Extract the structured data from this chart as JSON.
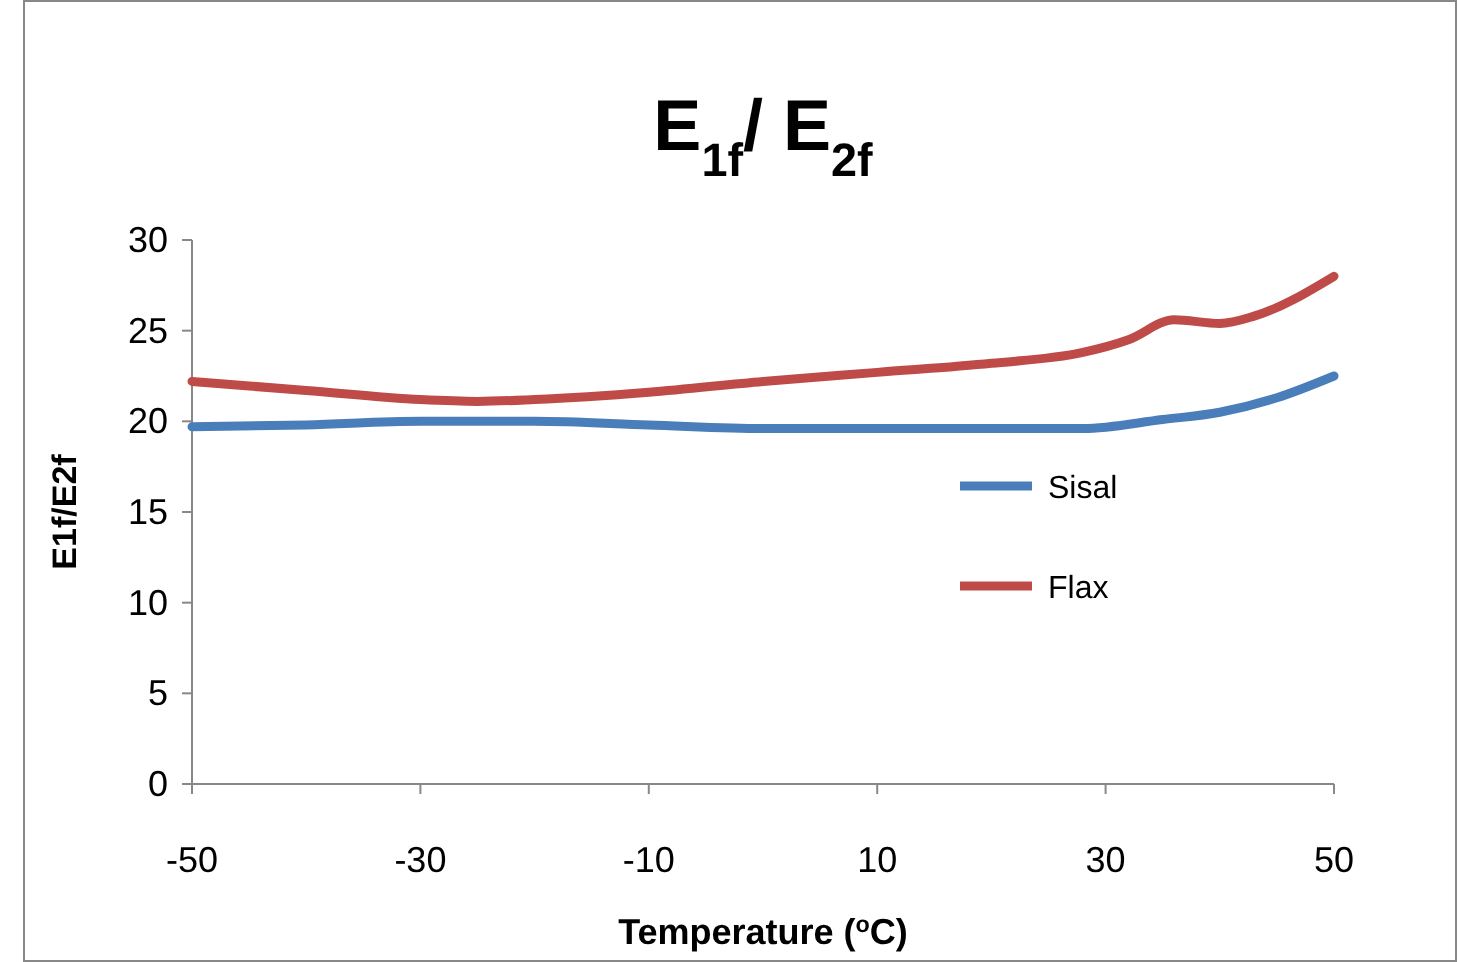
{
  "chart_data": {
    "type": "line",
    "title": "E$_{1f}$/ E$_{2f}$",
    "xlabel": "Temperature ($^{o}$C)",
    "ylabel": "E1f/E2f",
    "xlim": [
      -50,
      50
    ],
    "xticks": [
      -50,
      -30,
      -10,
      10,
      30,
      50
    ],
    "ylim": [
      0,
      30
    ],
    "yticks": [
      0,
      5,
      10,
      15,
      20,
      25,
      30
    ],
    "grid": false,
    "legend": "right",
    "line_style": "solid",
    "series": [
      {
        "name": "Sisal",
        "color": "#4a7ebb",
        "x": [
          -50,
          -40,
          -30,
          -20,
          -10,
          0,
          10,
          20,
          28,
          35,
          40,
          45,
          50
        ],
        "values": [
          19.7,
          19.8,
          20.0,
          20.0,
          19.8,
          19.6,
          19.6,
          19.6,
          19.6,
          20.1,
          20.5,
          21.3,
          22.5
        ]
      },
      {
        "name": "Flax",
        "color": "#be4b48",
        "x": [
          -50,
          -40,
          -30,
          -25,
          -20,
          -10,
          0,
          10,
          20,
          28,
          32,
          36,
          40,
          43,
          50
        ],
        "values": [
          22.2,
          21.7,
          21.2,
          21.1,
          21.2,
          21.6,
          22.2,
          22.7,
          23.2,
          23.8,
          24.5,
          25.6,
          25.4,
          25.8,
          28.0
        ]
      }
    ]
  }
}
